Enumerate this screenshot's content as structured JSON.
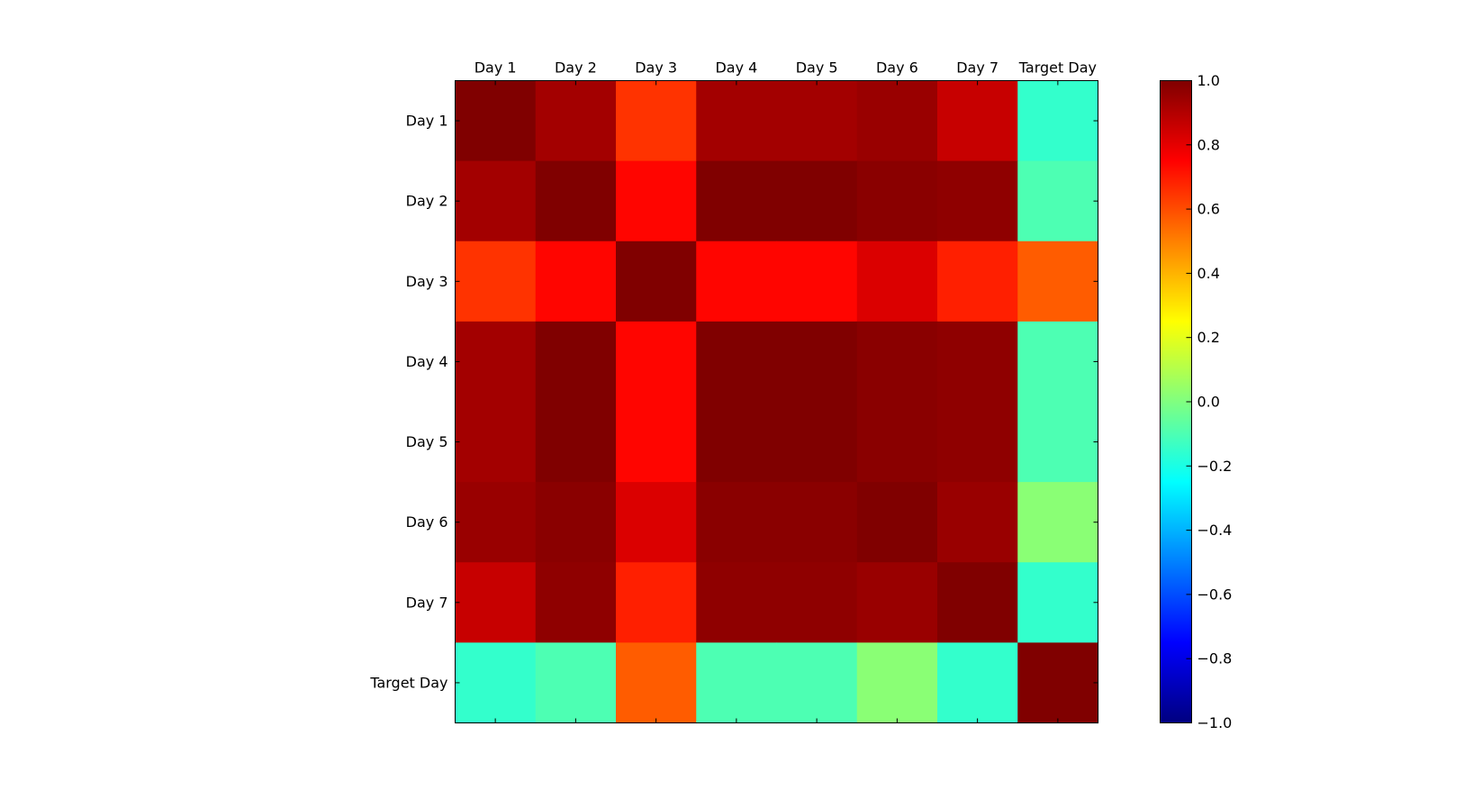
{
  "chart_data": {
    "type": "heatmap",
    "title": "",
    "xlabel": "",
    "ylabel": "",
    "x_categories": [
      "Day 1",
      "Day 2",
      "Day 3",
      "Day 4",
      "Day 5",
      "Day 6",
      "Day 7",
      "Target Day"
    ],
    "y_categories": [
      "Day 1",
      "Day 2",
      "Day 3",
      "Day 4",
      "Day 5",
      "Day 6",
      "Day 7",
      "Target Day"
    ],
    "values": [
      [
        1.0,
        0.93,
        0.65,
        0.93,
        0.93,
        0.95,
        0.86,
        -0.15
      ],
      [
        0.93,
        1.0,
        0.74,
        1.0,
        1.0,
        0.98,
        0.97,
        -0.1
      ],
      [
        0.65,
        0.74,
        1.0,
        0.74,
        0.74,
        0.82,
        0.69,
        0.57
      ],
      [
        0.93,
        1.0,
        0.74,
        1.0,
        1.0,
        0.98,
        0.97,
        -0.1
      ],
      [
        0.93,
        1.0,
        0.74,
        1.0,
        1.0,
        0.98,
        0.97,
        -0.1
      ],
      [
        0.95,
        0.98,
        0.82,
        0.98,
        0.98,
        1.0,
        0.95,
        0.02
      ],
      [
        0.86,
        0.97,
        0.69,
        0.97,
        0.97,
        0.95,
        1.0,
        -0.15
      ],
      [
        -0.15,
        -0.1,
        0.57,
        -0.1,
        -0.1,
        0.02,
        -0.15,
        1.0
      ]
    ],
    "colormap": "jet",
    "colorbar": {
      "range": [
        -1.0,
        1.0
      ],
      "ticks": [
        "−1.0",
        "−0.8",
        "−0.6",
        "−0.4",
        "−0.2",
        "0.0",
        "0.2",
        "0.4",
        "0.6",
        "0.8",
        "1.0"
      ]
    },
    "x_tick_position": "top",
    "grid": false
  }
}
